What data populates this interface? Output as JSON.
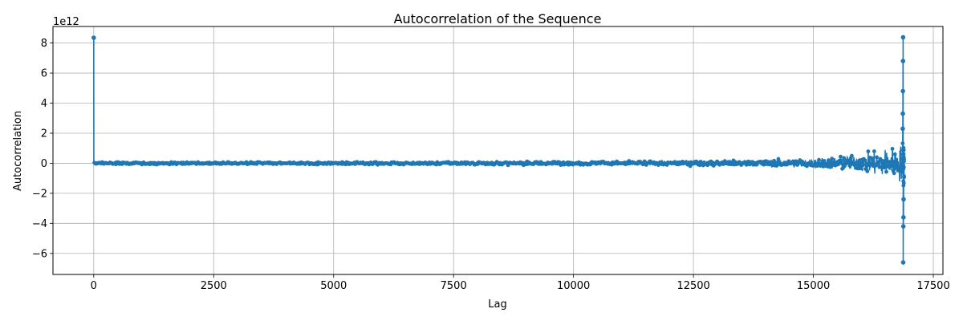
{
  "chart_data": {
    "type": "line",
    "title": "Autocorrelation of the Sequence",
    "xlabel": "Lag",
    "ylabel": "Autocorrelation",
    "y_scale_label": "1e12",
    "y_multiplier": 1000000000000.0,
    "xlim": [
      -850,
      17700
    ],
    "ylim": [
      -7.4,
      9.1
    ],
    "x_ticks": [
      0,
      2500,
      5000,
      7500,
      10000,
      12500,
      15000,
      17500
    ],
    "y_ticks": [
      -6,
      -4,
      -2,
      0,
      2,
      4,
      6,
      8
    ],
    "grid": true,
    "line_color": "#1f77b4",
    "marker": "dot",
    "series": [
      {
        "x_range": [
          0,
          16890
        ],
        "amplitude_envelope": [
          {
            "x": 0,
            "amp": 0.1
          },
          {
            "x": 5000,
            "amp": 0.12
          },
          {
            "x": 10000,
            "amp": 0.17
          },
          {
            "x": 12500,
            "amp": 0.22
          },
          {
            "x": 14000,
            "amp": 0.3
          },
          {
            "x": 15000,
            "amp": 0.42
          },
          {
            "x": 16000,
            "amp": 0.8
          },
          {
            "x": 16500,
            "amp": 1.3
          },
          {
            "x": 16890,
            "amp": 1.8
          }
        ],
        "notable_points": [
          {
            "x": 0,
            "y": 8.35
          },
          {
            "x": 16870,
            "y": 8.38
          },
          {
            "x": 16872,
            "y": -6.6
          },
          {
            "x": 16868,
            "y": 6.8
          },
          {
            "x": 16875,
            "y": -4.2
          },
          {
            "x": 16866,
            "y": 4.8
          },
          {
            "x": 16878,
            "y": -3.6
          },
          {
            "x": 16864,
            "y": 3.3
          },
          {
            "x": 16880,
            "y": -2.4
          },
          {
            "x": 16862,
            "y": 2.3
          }
        ]
      }
    ]
  }
}
